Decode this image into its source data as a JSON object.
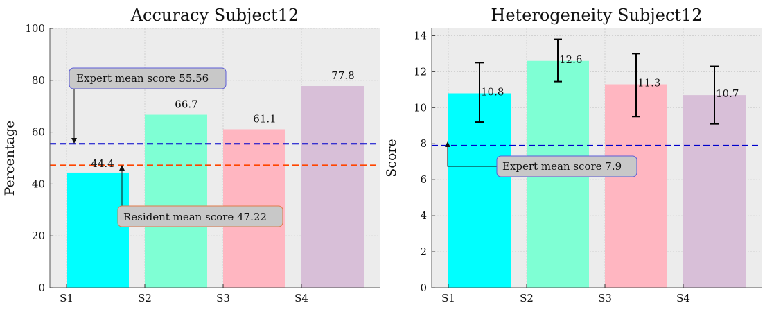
{
  "chart_data": [
    {
      "type": "bar",
      "title": "Accuracy Subject12",
      "ylabel": "Percentage",
      "xlabel": "",
      "categories": [
        "S1",
        "S2",
        "S3",
        "S4"
      ],
      "values": [
        44.4,
        66.7,
        61.1,
        77.8
      ],
      "value_labels": [
        "44.4",
        "66.7",
        "61.1",
        "77.8"
      ],
      "colors": [
        "#00ffff",
        "#7fffd4",
        "#ffb6c1",
        "#d8bfd8"
      ],
      "ylim": [
        0,
        100
      ],
      "yticks": [
        0,
        20,
        40,
        60,
        80,
        100
      ],
      "grid": true,
      "reference_lines": [
        {
          "value": 55.56,
          "color": "#0000cc",
          "style": "dashed",
          "annotation": "Expert mean score 55.56"
        },
        {
          "value": 47.22,
          "color": "#ff4500",
          "style": "dashed",
          "annotation": "Resident mean score 47.22"
        }
      ]
    },
    {
      "type": "bar",
      "title": "Heterogeneity Subject12",
      "ylabel": "Score",
      "xlabel": "",
      "categories": [
        "S1",
        "S2",
        "S3",
        "S4"
      ],
      "values": [
        10.8,
        12.6,
        11.3,
        10.7
      ],
      "value_labels": [
        "10.8",
        "12.6",
        "11.3",
        "10.7"
      ],
      "error_bars": [
        [
          9.2,
          12.5
        ],
        [
          11.45,
          13.8
        ],
        [
          9.5,
          13.0
        ],
        [
          9.1,
          12.3
        ]
      ],
      "colors": [
        "#00ffff",
        "#7fffd4",
        "#ffb6c1",
        "#d8bfd8"
      ],
      "ylim": [
        0,
        14.4
      ],
      "yticks": [
        0,
        2,
        4,
        6,
        8,
        10,
        12,
        14
      ],
      "grid": true,
      "reference_lines": [
        {
          "value": 7.9,
          "color": "#0000cc",
          "style": "dashed",
          "annotation": "Expert mean score 7.9"
        }
      ]
    }
  ]
}
